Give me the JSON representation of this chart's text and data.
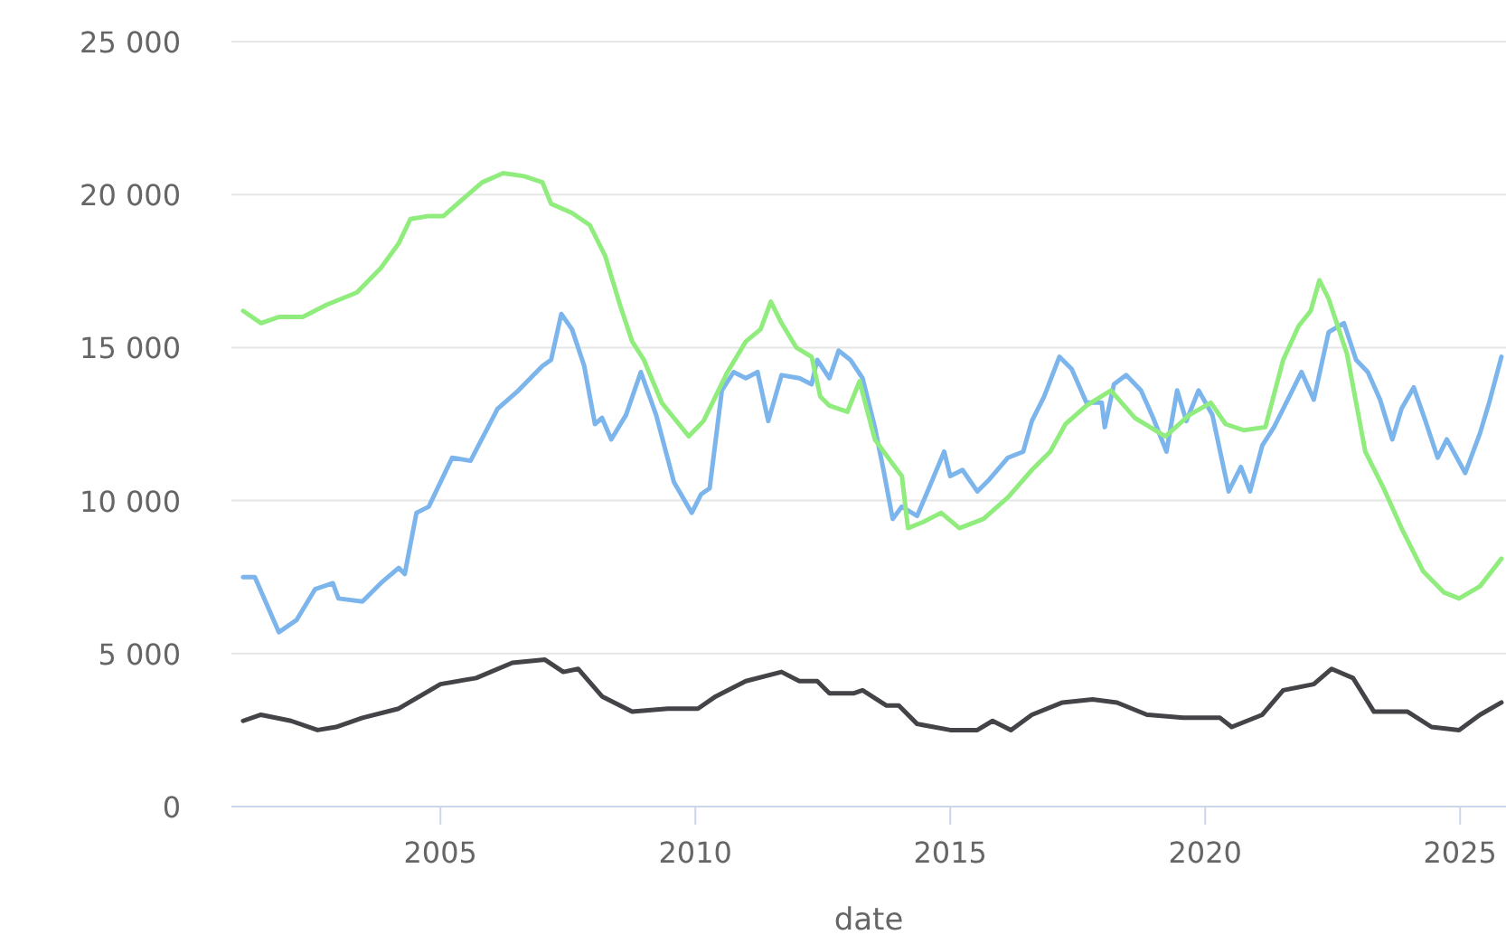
{
  "chart_data": {
    "type": "line",
    "xlabel": "date",
    "xlim": [
      2000.9,
      2025.9
    ],
    "xticks": [
      2005,
      2010,
      2015,
      2020,
      2025
    ],
    "ylim": [
      0,
      25000
    ],
    "yticks": [
      {
        "value": 0,
        "label": "0"
      },
      {
        "value": 5000,
        "label": "5 000"
      },
      {
        "value": 10000,
        "label": "10 000"
      },
      {
        "value": 15000,
        "label": "15 000"
      },
      {
        "value": 20000,
        "label": "20 000"
      },
      {
        "value": 25000,
        "label": "25 000"
      }
    ],
    "grid": "y",
    "line_style": "solid",
    "marker": "none",
    "series": [
      {
        "color": "#7cb5ec",
        "x": [
          2001.13,
          2001.36,
          2001.83,
          2002.18,
          2002.54,
          2002.89,
          2003.0,
          2003.47,
          2003.83,
          2004.18,
          2004.3,
          2004.53,
          2004.77,
          2005.23,
          2005.59,
          2006.12,
          2006.53,
          2007.0,
          2007.17,
          2007.37,
          2007.58,
          2007.82,
          2008.03,
          2008.17,
          2008.35,
          2008.64,
          2008.93,
          2009.23,
          2009.58,
          2009.93,
          2010.11,
          2010.28,
          2010.52,
          2010.75,
          2010.99,
          2011.22,
          2011.43,
          2011.69,
          2012.04,
          2012.28,
          2012.39,
          2012.63,
          2012.81,
          2013.04,
          2013.28,
          2013.52,
          2013.69,
          2013.87,
          2014.05,
          2014.35,
          2014.58,
          2014.88,
          2015.0,
          2015.24,
          2015.53,
          2015.77,
          2016.13,
          2016.43,
          2016.6,
          2016.84,
          2017.14,
          2017.38,
          2017.67,
          2017.97,
          2018.03,
          2018.21,
          2018.45,
          2018.74,
          2018.98,
          2019.24,
          2019.45,
          2019.63,
          2019.87,
          2020.14,
          2020.46,
          2020.7,
          2020.88,
          2021.12,
          2021.35,
          2021.59,
          2021.89,
          2022.13,
          2022.42,
          2022.72,
          2022.96,
          2023.19,
          2023.43,
          2023.67,
          2023.85,
          2024.09,
          2024.32,
          2024.56,
          2024.74,
          2025.1,
          2025.39,
          2025.57,
          2025.81
        ],
        "values": [
          7500,
          7500,
          5700,
          6100,
          7100,
          7300,
          6800,
          6700,
          7300,
          7800,
          7600,
          9600,
          9800,
          11400,
          11300,
          13000,
          13600,
          14400,
          14600,
          16100,
          15600,
          14400,
          12500,
          12700,
          12000,
          12800,
          14200,
          12800,
          10600,
          9600,
          10200,
          10400,
          13600,
          14200,
          14000,
          14200,
          12600,
          14100,
          14000,
          13800,
          14600,
          14000,
          14900,
          14600,
          14000,
          12400,
          11000,
          9400,
          9800,
          9500,
          10400,
          11600,
          10800,
          11000,
          10300,
          10700,
          11400,
          11600,
          12600,
          13400,
          14700,
          14300,
          13200,
          13200,
          12400,
          13800,
          14100,
          13600,
          12700,
          11600,
          13600,
          12600,
          13600,
          12800,
          10300,
          11100,
          10300,
          11800,
          12400,
          13200,
          14200,
          13300,
          15500,
          15800,
          14600,
          14200,
          13300,
          12000,
          13000,
          13700,
          12600,
          11400,
          12000,
          10900,
          12200,
          13200,
          14700
        ]
      },
      {
        "color": "#90ed7d",
        "x": [
          2001.13,
          2001.48,
          2001.83,
          2002.3,
          2002.77,
          2003.36,
          2003.83,
          2004.18,
          2004.41,
          2004.77,
          2005.06,
          2005.47,
          2005.82,
          2006.23,
          2006.64,
          2007.0,
          2007.17,
          2007.58,
          2007.93,
          2008.23,
          2008.52,
          2008.76,
          2008.99,
          2009.34,
          2009.87,
          2010.16,
          2010.63,
          2010.99,
          2011.28,
          2011.48,
          2011.69,
          2011.98,
          2012.28,
          2012.45,
          2012.63,
          2012.98,
          2013.22,
          2013.52,
          2013.87,
          2014.05,
          2014.17,
          2014.47,
          2014.82,
          2015.18,
          2015.65,
          2016.13,
          2016.6,
          2016.96,
          2017.26,
          2017.67,
          2018.15,
          2018.62,
          2019.22,
          2019.69,
          2020.11,
          2020.4,
          2020.76,
          2021.18,
          2021.53,
          2021.83,
          2022.07,
          2022.24,
          2022.42,
          2022.78,
          2023.14,
          2023.5,
          2023.85,
          2024.27,
          2024.68,
          2024.98,
          2025.39,
          2025.81
        ],
        "values": [
          16200,
          15800,
          16000,
          16000,
          16400,
          16800,
          17600,
          18400,
          19200,
          19300,
          19300,
          19900,
          20400,
          20700,
          20600,
          20400,
          19700,
          19400,
          19000,
          18000,
          16400,
          15200,
          14600,
          13200,
          12100,
          12600,
          14200,
          15200,
          15600,
          16500,
          15800,
          15000,
          14700,
          13400,
          13100,
          12900,
          13900,
          12000,
          11200,
          10800,
          9100,
          9300,
          9600,
          9100,
          9400,
          10100,
          11000,
          11600,
          12500,
          13100,
          13600,
          12700,
          12100,
          12800,
          13200,
          12500,
          12300,
          12400,
          14600,
          15700,
          16200,
          17200,
          16600,
          14800,
          11600,
          10400,
          9100,
          7700,
          7000,
          6800,
          7200,
          8100
        ]
      },
      {
        "color": "#434348",
        "x": [
          2001.13,
          2001.48,
          2002.07,
          2002.59,
          2002.95,
          2003.47,
          2004.18,
          2005.0,
          2005.7,
          2006.41,
          2007.05,
          2007.41,
          2007.7,
          2008.17,
          2008.76,
          2009.46,
          2010.05,
          2010.4,
          2010.99,
          2011.69,
          2012.04,
          2012.39,
          2012.63,
          2013.1,
          2013.28,
          2013.75,
          2013.99,
          2014.35,
          2015.0,
          2015.53,
          2015.83,
          2016.19,
          2016.6,
          2017.2,
          2017.79,
          2018.27,
          2018.86,
          2019.57,
          2020.29,
          2020.52,
          2021.12,
          2021.53,
          2022.13,
          2022.48,
          2022.9,
          2023.31,
          2023.97,
          2024.44,
          2024.98,
          2025.39,
          2025.81
        ],
        "values": [
          2800,
          3000,
          2800,
          2500,
          2600,
          2900,
          3200,
          4000,
          4200,
          4700,
          4800,
          4400,
          4500,
          3600,
          3100,
          3200,
          3200,
          3600,
          4100,
          4400,
          4100,
          4100,
          3700,
          3700,
          3800,
          3300,
          3300,
          2700,
          2500,
          2500,
          2800,
          2500,
          3000,
          3400,
          3500,
          3400,
          3000,
          2900,
          2900,
          2600,
          3000,
          3800,
          4000,
          4500,
          4200,
          3100,
          3100,
          2600,
          2500,
          3000,
          3400
        ]
      }
    ]
  }
}
